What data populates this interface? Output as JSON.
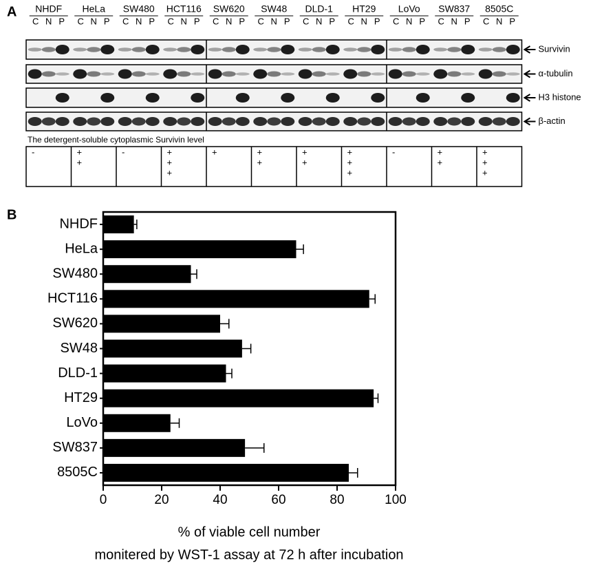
{
  "panel_a": {
    "label": "A",
    "cell_lines": [
      "NHDF",
      "HeLa",
      "SW480",
      "HCT116",
      "SW620",
      "SW48",
      "DLD-1",
      "HT29",
      "LoVo",
      "SW837",
      "8505C"
    ],
    "lanes": [
      "C",
      "N",
      "P"
    ],
    "blots": [
      "Survivin",
      "α-tubulin",
      "H3 histone",
      "β-actin"
    ],
    "table_title": "The detergent-soluble cytoplasmic Survivin level",
    "levels": [
      [
        "-"
      ],
      [
        "+",
        "+"
      ],
      [
        "-"
      ],
      [
        "+",
        "+",
        "+"
      ],
      [
        "+"
      ],
      [
        "+",
        "+"
      ],
      [
        "+",
        "+"
      ],
      [
        "+",
        "+",
        "+"
      ],
      [
        "-"
      ],
      [
        "+",
        "+"
      ],
      [
        "+",
        "+",
        "+"
      ]
    ]
  },
  "chart_data": {
    "type": "bar",
    "orientation": "horizontal",
    "label": "B",
    "categories": [
      "NHDF",
      "HeLa",
      "SW480",
      "HCT116",
      "SW620",
      "SW48",
      "DLD-1",
      "HT29",
      "LoVo",
      "SW837",
      "8505C"
    ],
    "values": [
      10.5,
      66,
      30,
      91,
      40,
      47.5,
      42,
      92.5,
      23,
      48.5,
      84
    ],
    "errors": [
      1,
      2.5,
      2,
      2,
      3,
      3,
      2,
      1.5,
      3,
      6.5,
      3
    ],
    "color": "#000000",
    "xlim": [
      0,
      100
    ],
    "xticks": [
      0,
      20,
      40,
      60,
      80,
      100
    ],
    "xlabel": [
      "% of viable cell number",
      "monitered by WST-1 assay at 72 h after incubation"
    ]
  }
}
